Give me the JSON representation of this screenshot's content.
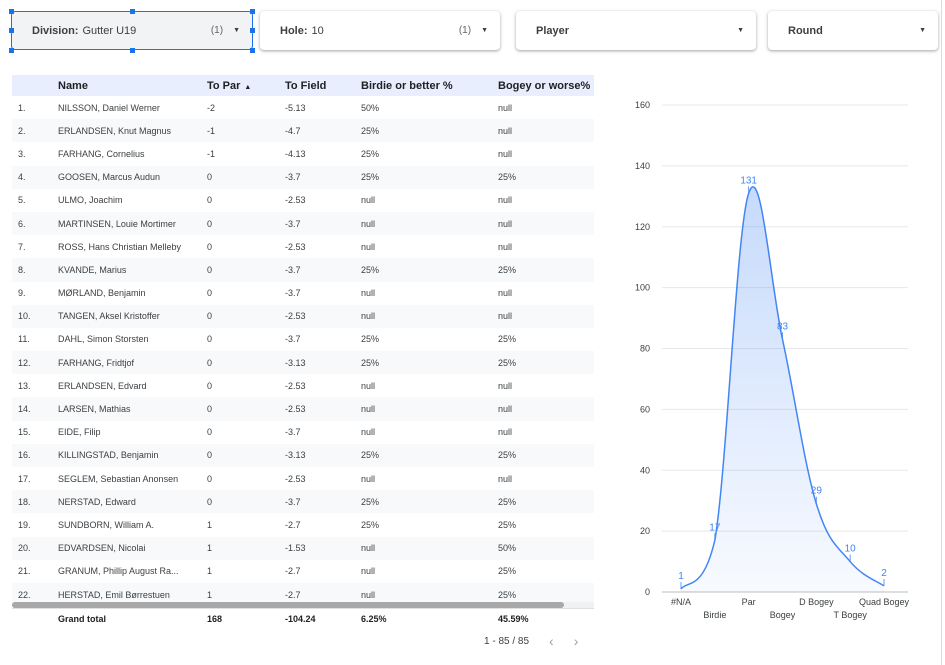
{
  "filters": [
    {
      "label": "Division:",
      "value": "Gutter U19",
      "count": "(1)"
    },
    {
      "label": "Hole:",
      "value": "10",
      "count": "(1)"
    },
    {
      "label": "Player",
      "value": "",
      "count": ""
    },
    {
      "label": "Round",
      "value": "",
      "count": ""
    }
  ],
  "table": {
    "headers": {
      "name": "Name",
      "to_par": "To Par",
      "to_field": "To Field",
      "birdie": "Birdie or better %",
      "bogey": "Bogey or worse%"
    },
    "rows": [
      {
        "idx": "1.",
        "name": "NILSSON, Daniel Werner",
        "to_par": "-2",
        "to_field": "-5.13",
        "birdie": "50%",
        "bogey": "null"
      },
      {
        "idx": "2.",
        "name": "ERLANDSEN, Knut Magnus",
        "to_par": "-1",
        "to_field": "-4.7",
        "birdie": "25%",
        "bogey": "null"
      },
      {
        "idx": "3.",
        "name": "FARHANG, Cornelius",
        "to_par": "-1",
        "to_field": "-4.13",
        "birdie": "25%",
        "bogey": "null"
      },
      {
        "idx": "4.",
        "name": "GOOSEN, Marcus Audun",
        "to_par": "0",
        "to_field": "-3.7",
        "birdie": "25%",
        "bogey": "25%"
      },
      {
        "idx": "5.",
        "name": "ULMO, Joachim",
        "to_par": "0",
        "to_field": "-2.53",
        "birdie": "null",
        "bogey": "null"
      },
      {
        "idx": "6.",
        "name": "MARTINSEN, Louie Mortimer",
        "to_par": "0",
        "to_field": "-3.7",
        "birdie": "null",
        "bogey": "null"
      },
      {
        "idx": "7.",
        "name": "ROSS, Hans Christian Melleby",
        "to_par": "0",
        "to_field": "-2.53",
        "birdie": "null",
        "bogey": "null"
      },
      {
        "idx": "8.",
        "name": "KVANDE, Marius",
        "to_par": "0",
        "to_field": "-3.7",
        "birdie": "25%",
        "bogey": "25%"
      },
      {
        "idx": "9.",
        "name": "MØRLAND, Benjamin",
        "to_par": "0",
        "to_field": "-3.7",
        "birdie": "null",
        "bogey": "null"
      },
      {
        "idx": "10.",
        "name": "TANGEN, Aksel Kristoffer",
        "to_par": "0",
        "to_field": "-2.53",
        "birdie": "null",
        "bogey": "null"
      },
      {
        "idx": "11.",
        "name": "DAHL, Simon Storsten",
        "to_par": "0",
        "to_field": "-3.7",
        "birdie": "25%",
        "bogey": "25%"
      },
      {
        "idx": "12.",
        "name": "FARHANG, Fridtjof",
        "to_par": "0",
        "to_field": "-3.13",
        "birdie": "25%",
        "bogey": "25%"
      },
      {
        "idx": "13.",
        "name": "ERLANDSEN, Edvard",
        "to_par": "0",
        "to_field": "-2.53",
        "birdie": "null",
        "bogey": "null"
      },
      {
        "idx": "14.",
        "name": "LARSEN, Mathias",
        "to_par": "0",
        "to_field": "-2.53",
        "birdie": "null",
        "bogey": "null"
      },
      {
        "idx": "15.",
        "name": "EIDE, Filip",
        "to_par": "0",
        "to_field": "-3.7",
        "birdie": "null",
        "bogey": "null"
      },
      {
        "idx": "16.",
        "name": "KILLINGSTAD, Benjamin",
        "to_par": "0",
        "to_field": "-3.13",
        "birdie": "25%",
        "bogey": "25%"
      },
      {
        "idx": "17.",
        "name": "SEGLEM, Sebastian Anonsen",
        "to_par": "0",
        "to_field": "-2.53",
        "birdie": "null",
        "bogey": "null"
      },
      {
        "idx": "18.",
        "name": "NERSTAD, Edward",
        "to_par": "0",
        "to_field": "-3.7",
        "birdie": "25%",
        "bogey": "25%"
      },
      {
        "idx": "19.",
        "name": "SUNDBORN, William A.",
        "to_par": "1",
        "to_field": "-2.7",
        "birdie": "25%",
        "bogey": "25%"
      },
      {
        "idx": "20.",
        "name": "EDVARDSEN, Nicolai",
        "to_par": "1",
        "to_field": "-1.53",
        "birdie": "null",
        "bogey": "50%"
      },
      {
        "idx": "21.",
        "name": "GRANUM, Phillip August Ra...",
        "to_par": "1",
        "to_field": "-2.7",
        "birdie": "null",
        "bogey": "25%"
      },
      {
        "idx": "22.",
        "name": "HERSTAD, Emil Børrestuen",
        "to_par": "1",
        "to_field": "-2.7",
        "birdie": "null",
        "bogey": "25%"
      }
    ],
    "total": {
      "label": "Grand total",
      "to_par": "168",
      "to_field": "-104.24",
      "birdie": "6.25%",
      "bogey": "45.59%"
    }
  },
  "pagination": {
    "text": "1 - 85 / 85",
    "prev": "‹",
    "next": "›"
  },
  "chart_data": {
    "type": "area",
    "categories": [
      "#N/A",
      "Birdie",
      "Par",
      "Bogey",
      "D Bogey",
      "T Bogey",
      "Quad Bogey"
    ],
    "values": [
      1,
      17,
      131,
      83,
      29,
      10,
      2
    ],
    "ylim": [
      0,
      160
    ],
    "yticks": [
      0,
      20,
      40,
      60,
      80,
      100,
      120,
      140,
      160
    ],
    "title": "",
    "xlabel": "",
    "ylabel": "",
    "color": "#4285f4"
  },
  "colors": {
    "accent": "#1a73e8",
    "header_bg": "#e8eefe"
  }
}
